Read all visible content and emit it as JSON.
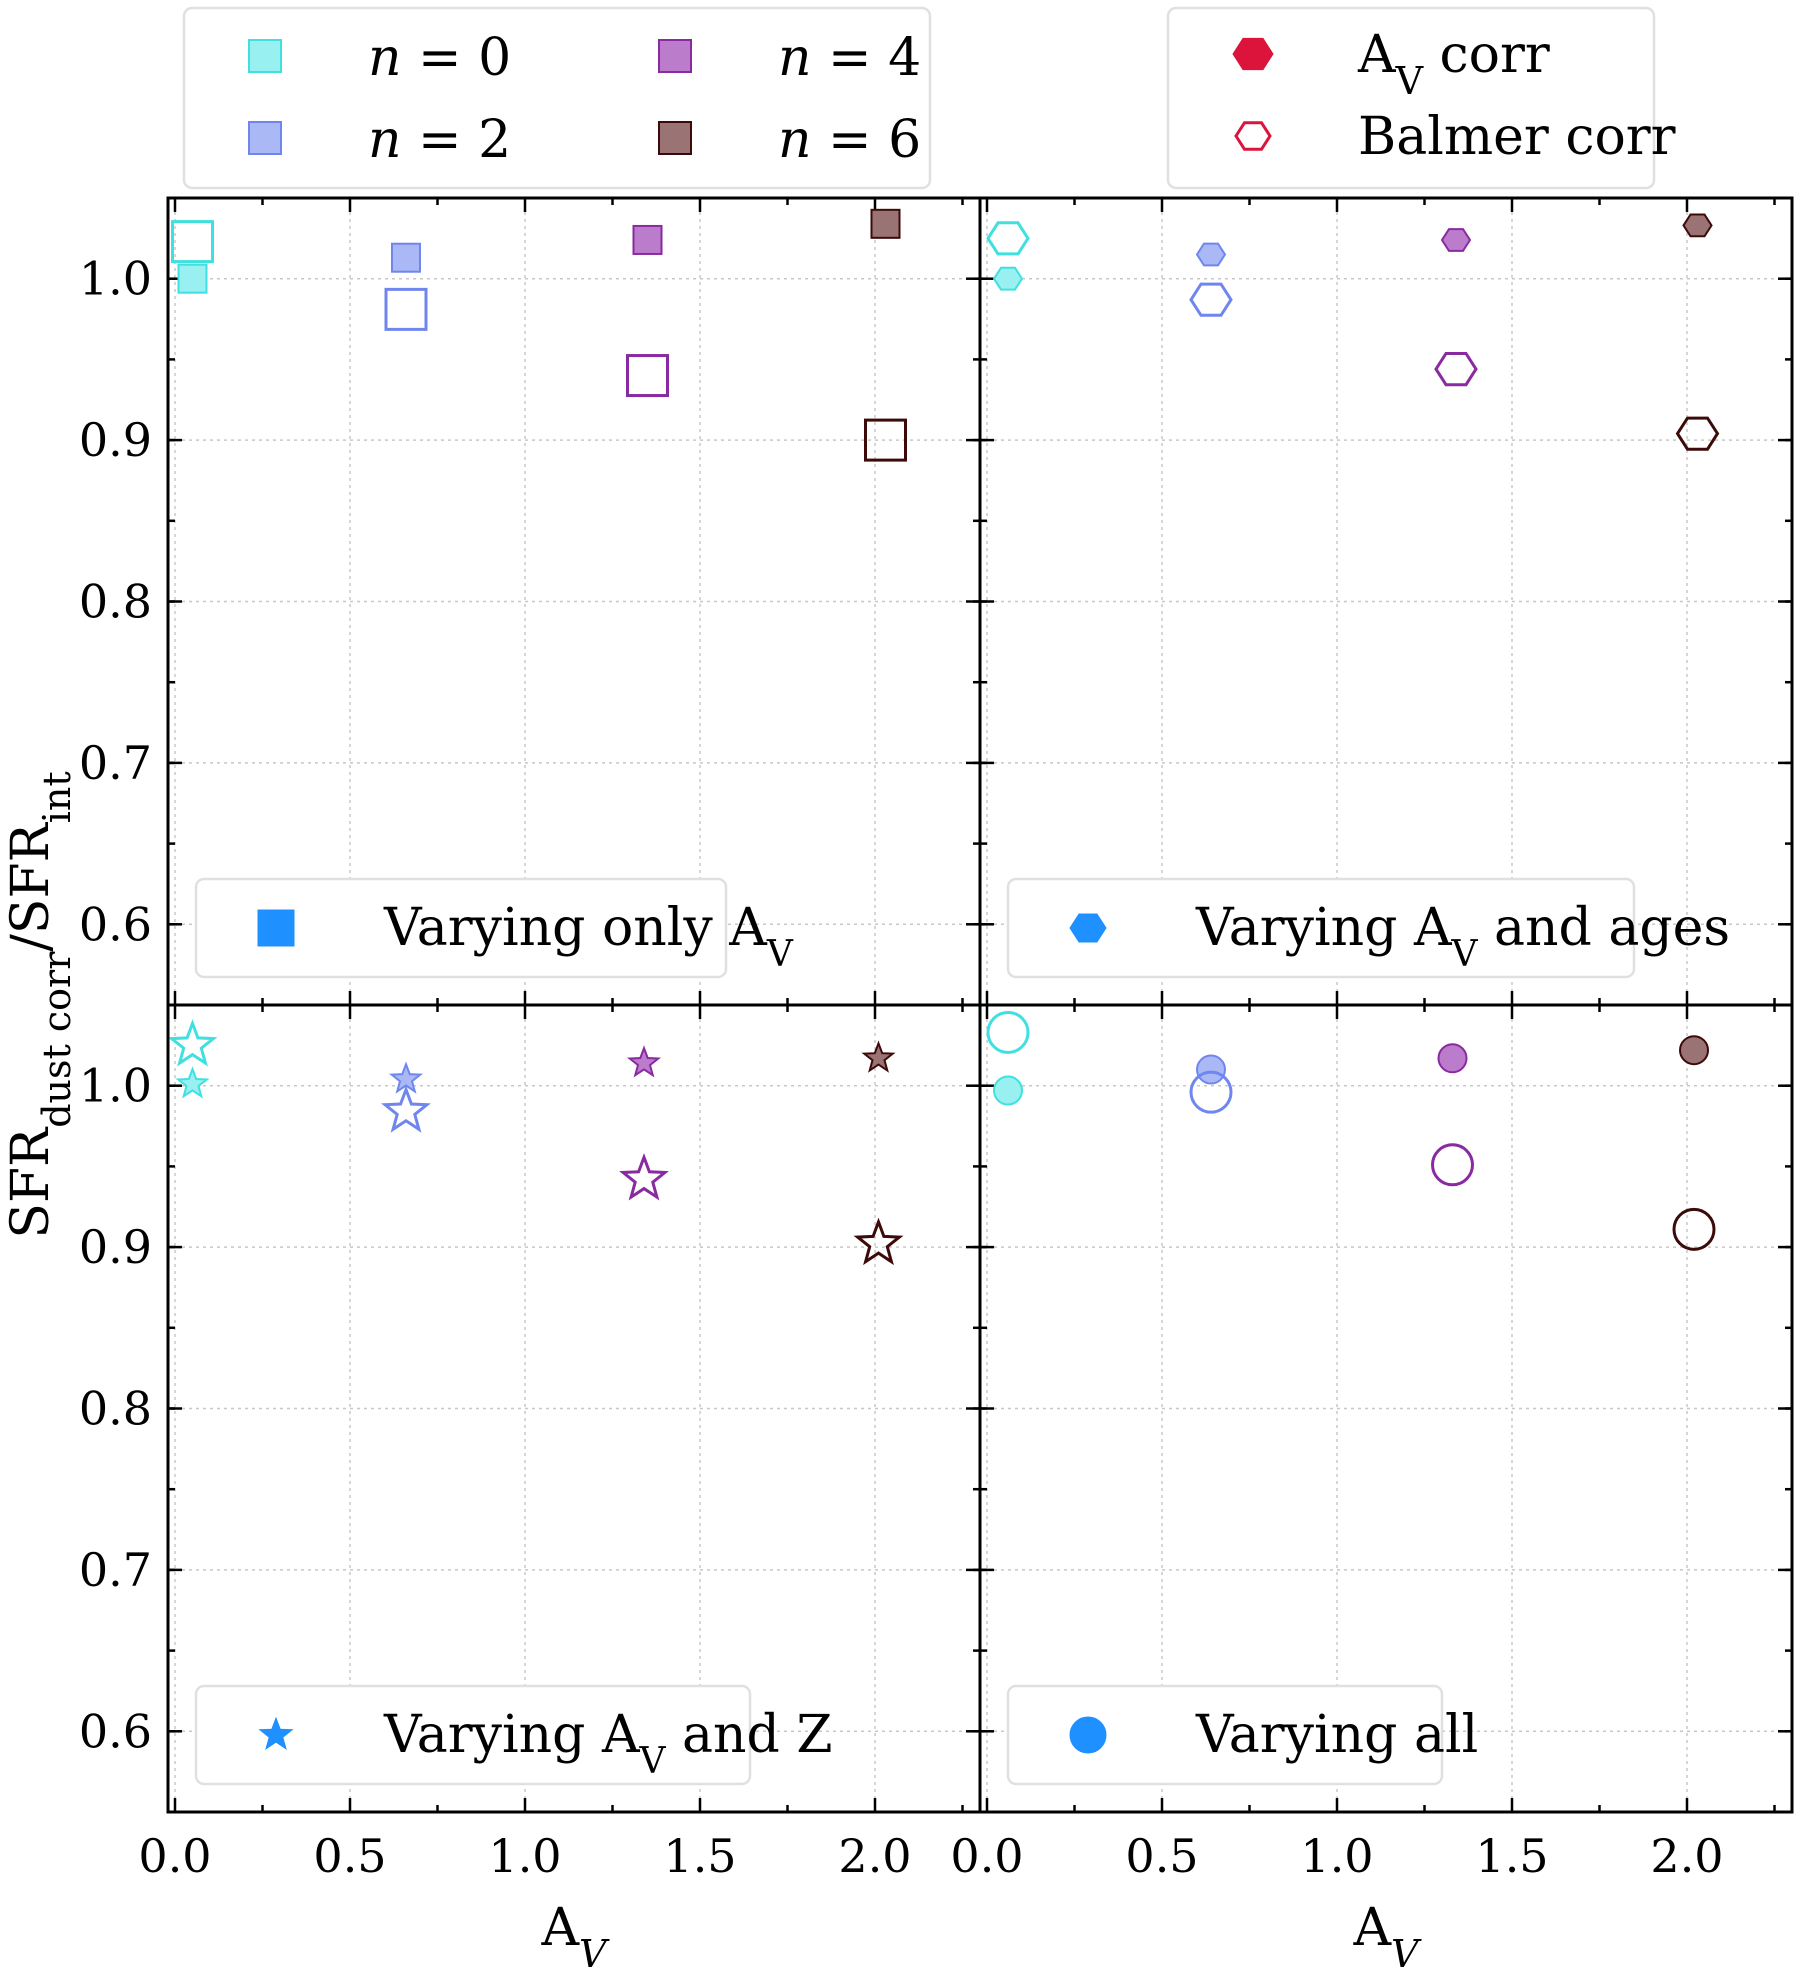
{
  "chart_data": {
    "type": "scatter",
    "layout": "2x2 grid, shared axes",
    "xlabel": "A",
    "xlabel_sub": "V",
    "ylabel_main": "SFR",
    "ylabel_sub1": "dust corr",
    "ylabel_slash": "/SFR",
    "ylabel_sub2": "int",
    "xlim": [
      -0.02,
      2.3
    ],
    "ylim": [
      0.55,
      1.05
    ],
    "xticks": [
      "0.0",
      "0.5",
      "1.0",
      "1.5",
      "2.0"
    ],
    "yticks": [
      "0.6",
      "0.7",
      "0.8",
      "0.9",
      "1.0"
    ],
    "grid": true,
    "series_colors": {
      "n=0": "#40e0e0",
      "n=2": "#6f86ee",
      "n=4": "#8a2aa0",
      "n=6": "#3d0a0a"
    },
    "filled_colors": {
      "n=0": "#98f0f0",
      "n=2": "#aab8f6",
      "n=4": "#bb7ccc",
      "n=6": "#9a7474"
    },
    "top_legend_left": {
      "position": "above panels, left",
      "entries": [
        {
          "key": "n=0",
          "n_label": "n",
          "eq": " = ",
          "val": "0"
        },
        {
          "key": "n=2",
          "n_label": "n",
          "eq": " = ",
          "val": "2"
        },
        {
          "key": "n=4",
          "n_label": "n",
          "eq": " = ",
          "val": "4"
        },
        {
          "key": "n=6",
          "n_label": "n",
          "eq": " = ",
          "val": "6"
        }
      ]
    },
    "top_legend_right": {
      "position": "above panels, right",
      "accent": "#dc143c",
      "av_corr_main": "A",
      "av_corr_sub": "V",
      "av_corr_rest": " corr",
      "balmer_corr": "Balmer corr"
    },
    "panels": [
      {
        "id": "varying-only-av",
        "marker": "square",
        "legend_main": "Varying only A",
        "legend_sub": "V",
        "legend_rest": "",
        "av_corr": [
          {
            "key": "n=0",
            "x": 0.05,
            "y": 1.0
          },
          {
            "key": "n=2",
            "x": 0.66,
            "y": 1.013
          },
          {
            "key": "n=4",
            "x": 1.35,
            "y": 1.024
          },
          {
            "key": "n=6",
            "x": 2.03,
            "y": 1.034
          }
        ],
        "balmer_corr": [
          {
            "key": "n=0",
            "x": 0.05,
            "y": 1.023
          },
          {
            "key": "n=2",
            "x": 0.66,
            "y": 0.981
          },
          {
            "key": "n=4",
            "x": 1.35,
            "y": 0.94
          },
          {
            "key": "n=6",
            "x": 2.03,
            "y": 0.9
          }
        ]
      },
      {
        "id": "varying-av-and-ages",
        "marker": "hexagon",
        "legend_main": "Varying A",
        "legend_sub": "V",
        "legend_rest": " and ages",
        "av_corr": [
          {
            "key": "n=0",
            "x": 0.06,
            "y": 1.0
          },
          {
            "key": "n=2",
            "x": 0.64,
            "y": 1.015
          },
          {
            "key": "n=4",
            "x": 1.34,
            "y": 1.024
          },
          {
            "key": "n=6",
            "x": 2.03,
            "y": 1.033
          }
        ],
        "balmer_corr": [
          {
            "key": "n=0",
            "x": 0.06,
            "y": 1.025
          },
          {
            "key": "n=2",
            "x": 0.64,
            "y": 0.987
          },
          {
            "key": "n=4",
            "x": 1.34,
            "y": 0.944
          },
          {
            "key": "n=6",
            "x": 2.03,
            "y": 0.904
          }
        ]
      },
      {
        "id": "varying-av-and-z",
        "marker": "star",
        "legend_main": "Varying A",
        "legend_sub": "V",
        "legend_rest": " and Z",
        "av_corr": [
          {
            "key": "n=0",
            "x": 0.05,
            "y": 1.001
          },
          {
            "key": "n=2",
            "x": 0.66,
            "y": 1.004
          },
          {
            "key": "n=4",
            "x": 1.34,
            "y": 1.014
          },
          {
            "key": "n=6",
            "x": 2.01,
            "y": 1.017
          }
        ],
        "balmer_corr": [
          {
            "key": "n=0",
            "x": 0.05,
            "y": 1.025
          },
          {
            "key": "n=2",
            "x": 0.66,
            "y": 0.984
          },
          {
            "key": "n=4",
            "x": 1.34,
            "y": 0.942
          },
          {
            "key": "n=6",
            "x": 2.01,
            "y": 0.902
          }
        ]
      },
      {
        "id": "varying-all",
        "marker": "circle",
        "legend_main": "Varying all",
        "legend_sub": "",
        "legend_rest": "",
        "av_corr": [
          {
            "key": "n=0",
            "x": 0.06,
            "y": 0.997
          },
          {
            "key": "n=2",
            "x": 0.64,
            "y": 1.01
          },
          {
            "key": "n=4",
            "x": 1.33,
            "y": 1.017
          },
          {
            "key": "n=6",
            "x": 2.02,
            "y": 1.022
          }
        ],
        "balmer_corr": [
          {
            "key": "n=0",
            "x": 0.06,
            "y": 1.033
          },
          {
            "key": "n=2",
            "x": 0.64,
            "y": 0.996
          },
          {
            "key": "n=4",
            "x": 1.33,
            "y": 0.951
          },
          {
            "key": "n=6",
            "x": 2.02,
            "y": 0.911
          }
        ]
      }
    ],
    "legend_marker_color": "#1e90ff"
  }
}
